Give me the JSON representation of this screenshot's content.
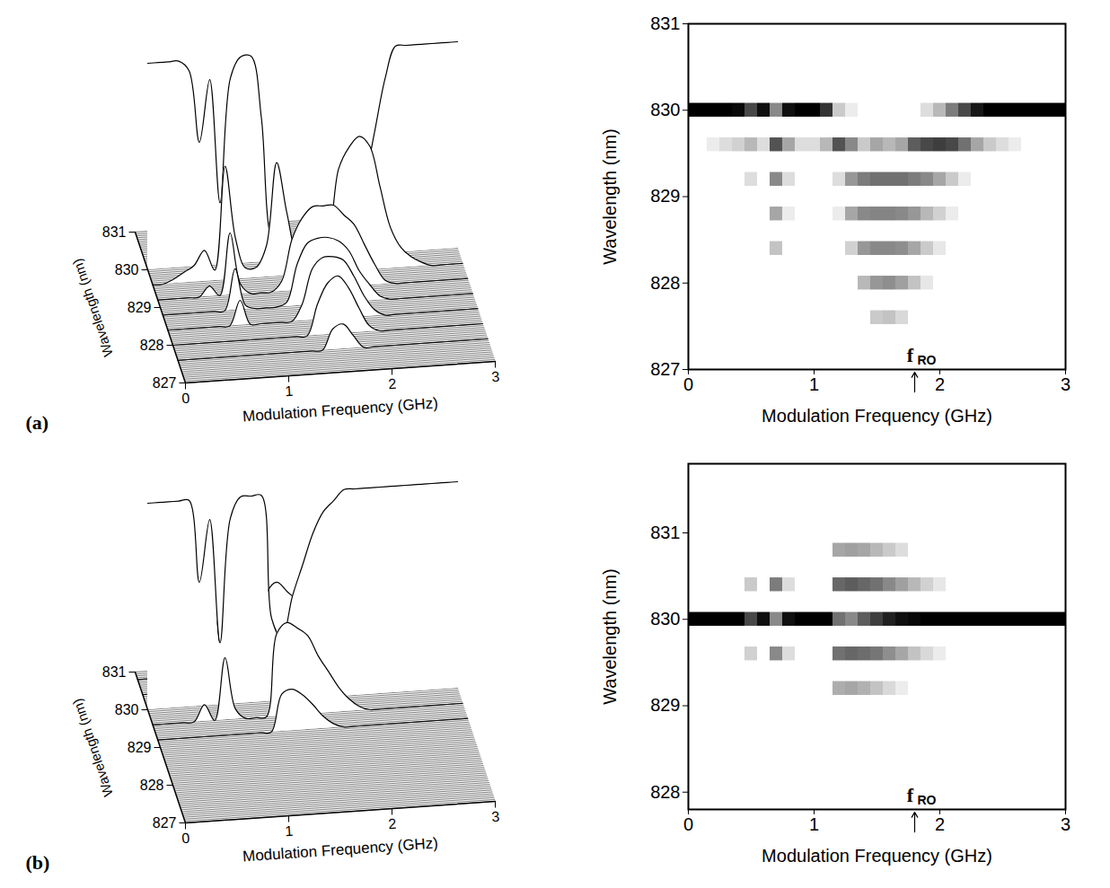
{
  "chart_data": [
    {
      "panel": "(a)",
      "x": [
        0,
        0.1,
        0.2,
        0.3,
        0.4,
        0.5,
        0.6,
        0.7,
        0.8,
        0.9,
        1,
        1.1,
        1.2,
        1.3,
        1.4,
        1.5,
        1.6,
        1.7,
        1.8,
        1.9,
        2,
        2.1,
        2.2,
        2.3,
        2.4,
        2.5,
        2.6,
        2.7,
        2.8,
        2.9,
        3
      ],
      "zlim": [
        0,
        1
      ],
      "series": [
        {
          "wavelength": 830.0,
          "values": [
            1,
            1,
            1,
            1,
            0.95,
            0.6,
            0.9,
            0.3,
            0.9,
            1,
            1,
            0.7,
            0.1,
            0.02,
            0,
            0,
            0,
            0,
            0,
            0.05,
            0.15,
            0.35,
            0.6,
            0.85,
            1,
            1,
            1,
            1,
            1,
            1,
            1
          ]
        },
        {
          "wavelength": 829.6,
          "values": [
            0,
            0,
            0.02,
            0.05,
            0.08,
            0.15,
            0.05,
            0.55,
            0.2,
            0.05,
            0.05,
            0.15,
            0.55,
            0.3,
            0.1,
            0.2,
            0.15,
            0.2,
            0.5,
            0.6,
            0.65,
            0.6,
            0.4,
            0.2,
            0.1,
            0.05,
            0.02,
            0,
            0,
            0,
            0
          ]
        },
        {
          "wavelength": 829.2,
          "values": [
            0,
            0,
            0,
            0,
            0,
            0.05,
            0,
            0.3,
            0.05,
            0,
            0,
            0,
            0.05,
            0.25,
            0.35,
            0.4,
            0.4,
            0.4,
            0.35,
            0.3,
            0.2,
            0.1,
            0.02,
            0,
            0,
            0,
            0,
            0,
            0,
            0,
            0
          ]
        },
        {
          "wavelength": 828.8,
          "values": [
            0,
            0,
            0,
            0,
            0,
            0,
            0,
            0.2,
            0.02,
            0,
            0,
            0,
            0.02,
            0.2,
            0.3,
            0.32,
            0.32,
            0.3,
            0.25,
            0.15,
            0.08,
            0.02,
            0,
            0,
            0,
            0,
            0,
            0,
            0,
            0,
            0
          ]
        },
        {
          "wavelength": 828.4,
          "values": [
            0,
            0,
            0,
            0,
            0,
            0,
            0,
            0.12,
            0,
            0,
            0,
            0,
            0,
            0.08,
            0.25,
            0.3,
            0.3,
            0.28,
            0.2,
            0.1,
            0.03,
            0,
            0,
            0,
            0,
            0,
            0,
            0,
            0,
            0,
            0
          ]
        },
        {
          "wavelength": 828.0,
          "values": [
            0,
            0,
            0,
            0,
            0,
            0,
            0,
            0,
            0,
            0,
            0,
            0,
            0,
            0,
            0.15,
            0.25,
            0.28,
            0.22,
            0.12,
            0.03,
            0,
            0,
            0,
            0,
            0,
            0,
            0,
            0,
            0,
            0,
            0
          ]
        },
        {
          "wavelength": 827.6,
          "values": [
            0,
            0,
            0,
            0,
            0,
            0,
            0,
            0,
            0,
            0,
            0,
            0,
            0,
            0,
            0,
            0.1,
            0.12,
            0.06,
            0,
            0,
            0,
            0,
            0,
            0,
            0,
            0,
            0,
            0,
            0,
            0,
            0
          ]
        }
      ],
      "views": [
        {
          "type": "waterfall",
          "xlabel": "Modulation Frequency (GHz)",
          "ylabel": "Wavelength (nm)",
          "xlim": [
            0,
            3
          ],
          "xticks": [
            0,
            1,
            2,
            3
          ],
          "ylim": [
            827,
            831
          ],
          "yticks": [
            827,
            828,
            829,
            830,
            831
          ]
        },
        {
          "type": "heatmap",
          "xlabel": "Modulation Frequency (GHz)",
          "ylabel": "Wavelength (nm)",
          "xlim": [
            0,
            3
          ],
          "xticks": [
            0,
            1,
            2,
            3
          ],
          "ylim": [
            827,
            831
          ],
          "yticks": [
            827,
            828,
            829,
            830,
            831
          ],
          "annotation": {
            "text": "f",
            "subscript": "RO",
            "x": 1.8
          }
        }
      ]
    },
    {
      "panel": "(b)",
      "x": [
        0,
        0.1,
        0.2,
        0.3,
        0.4,
        0.5,
        0.6,
        0.7,
        0.8,
        0.9,
        1,
        1.1,
        1.2,
        1.3,
        1.4,
        1.5,
        1.6,
        1.7,
        1.8,
        1.9,
        2,
        2.1,
        2.2,
        2.3,
        2.4,
        2.5,
        2.6,
        2.7,
        2.8,
        2.9,
        3
      ],
      "zlim": [
        0,
        1
      ],
      "series": [
        {
          "wavelength": 830.8,
          "values": [
            0,
            0,
            0,
            0,
            0,
            0,
            0,
            0,
            0,
            0,
            0,
            0,
            0.2,
            0.22,
            0.2,
            0.15,
            0.1,
            0.05,
            0,
            0,
            0,
            0,
            0,
            0,
            0,
            0,
            0,
            0,
            0,
            0,
            0
          ]
        },
        {
          "wavelength": 830.4,
          "values": [
            0,
            0,
            0,
            0,
            0,
            0.1,
            0,
            0.35,
            0.05,
            0,
            0,
            0,
            0.45,
            0.5,
            0.45,
            0.4,
            0.3,
            0.22,
            0.15,
            0.08,
            0.03,
            0,
            0,
            0,
            0,
            0,
            0,
            0,
            0,
            0,
            0
          ]
        },
        {
          "wavelength": 830.0,
          "values": [
            1,
            1,
            1,
            1,
            1,
            0.6,
            0.9,
            0.3,
            0.9,
            1,
            1,
            1,
            0.4,
            0.3,
            0.5,
            0.65,
            0.8,
            0.9,
            0.95,
            1,
            1,
            1,
            1,
            1,
            1,
            1,
            1,
            1,
            1,
            1,
            1
          ]
        },
        {
          "wavelength": 829.6,
          "values": [
            0,
            0,
            0,
            0,
            0,
            0.08,
            0,
            0.3,
            0.05,
            0,
            0,
            0,
            0.4,
            0.45,
            0.42,
            0.38,
            0.28,
            0.2,
            0.12,
            0.06,
            0.02,
            0,
            0,
            0,
            0,
            0,
            0,
            0,
            0,
            0,
            0
          ]
        },
        {
          "wavelength": 829.2,
          "values": [
            0,
            0,
            0,
            0,
            0,
            0,
            0,
            0,
            0,
            0,
            0,
            0,
            0.18,
            0.2,
            0.17,
            0.12,
            0.06,
            0.02,
            0,
            0,
            0,
            0,
            0,
            0,
            0,
            0,
            0,
            0,
            0,
            0,
            0
          ]
        }
      ],
      "views": [
        {
          "type": "waterfall",
          "xlabel": "Modulation Frequency (GHz)",
          "ylabel": "Wavelength (nm)",
          "xlim": [
            0,
            3
          ],
          "xticks": [
            0,
            1,
            2,
            3
          ],
          "ylim": [
            827,
            831
          ],
          "yticks": [
            827,
            828,
            829,
            830,
            831
          ]
        },
        {
          "type": "heatmap",
          "xlabel": "Modulation Frequency (GHz)",
          "ylabel": "Wavelength (nm)",
          "xlim": [
            0,
            3
          ],
          "xticks": [
            0,
            1,
            2,
            3
          ],
          "ylim": [
            827.8,
            831.8
          ],
          "yticks": [
            828,
            829,
            830,
            831
          ],
          "annotation": {
            "text": "f",
            "subscript": "RO",
            "x": 1.8
          }
        }
      ]
    }
  ]
}
